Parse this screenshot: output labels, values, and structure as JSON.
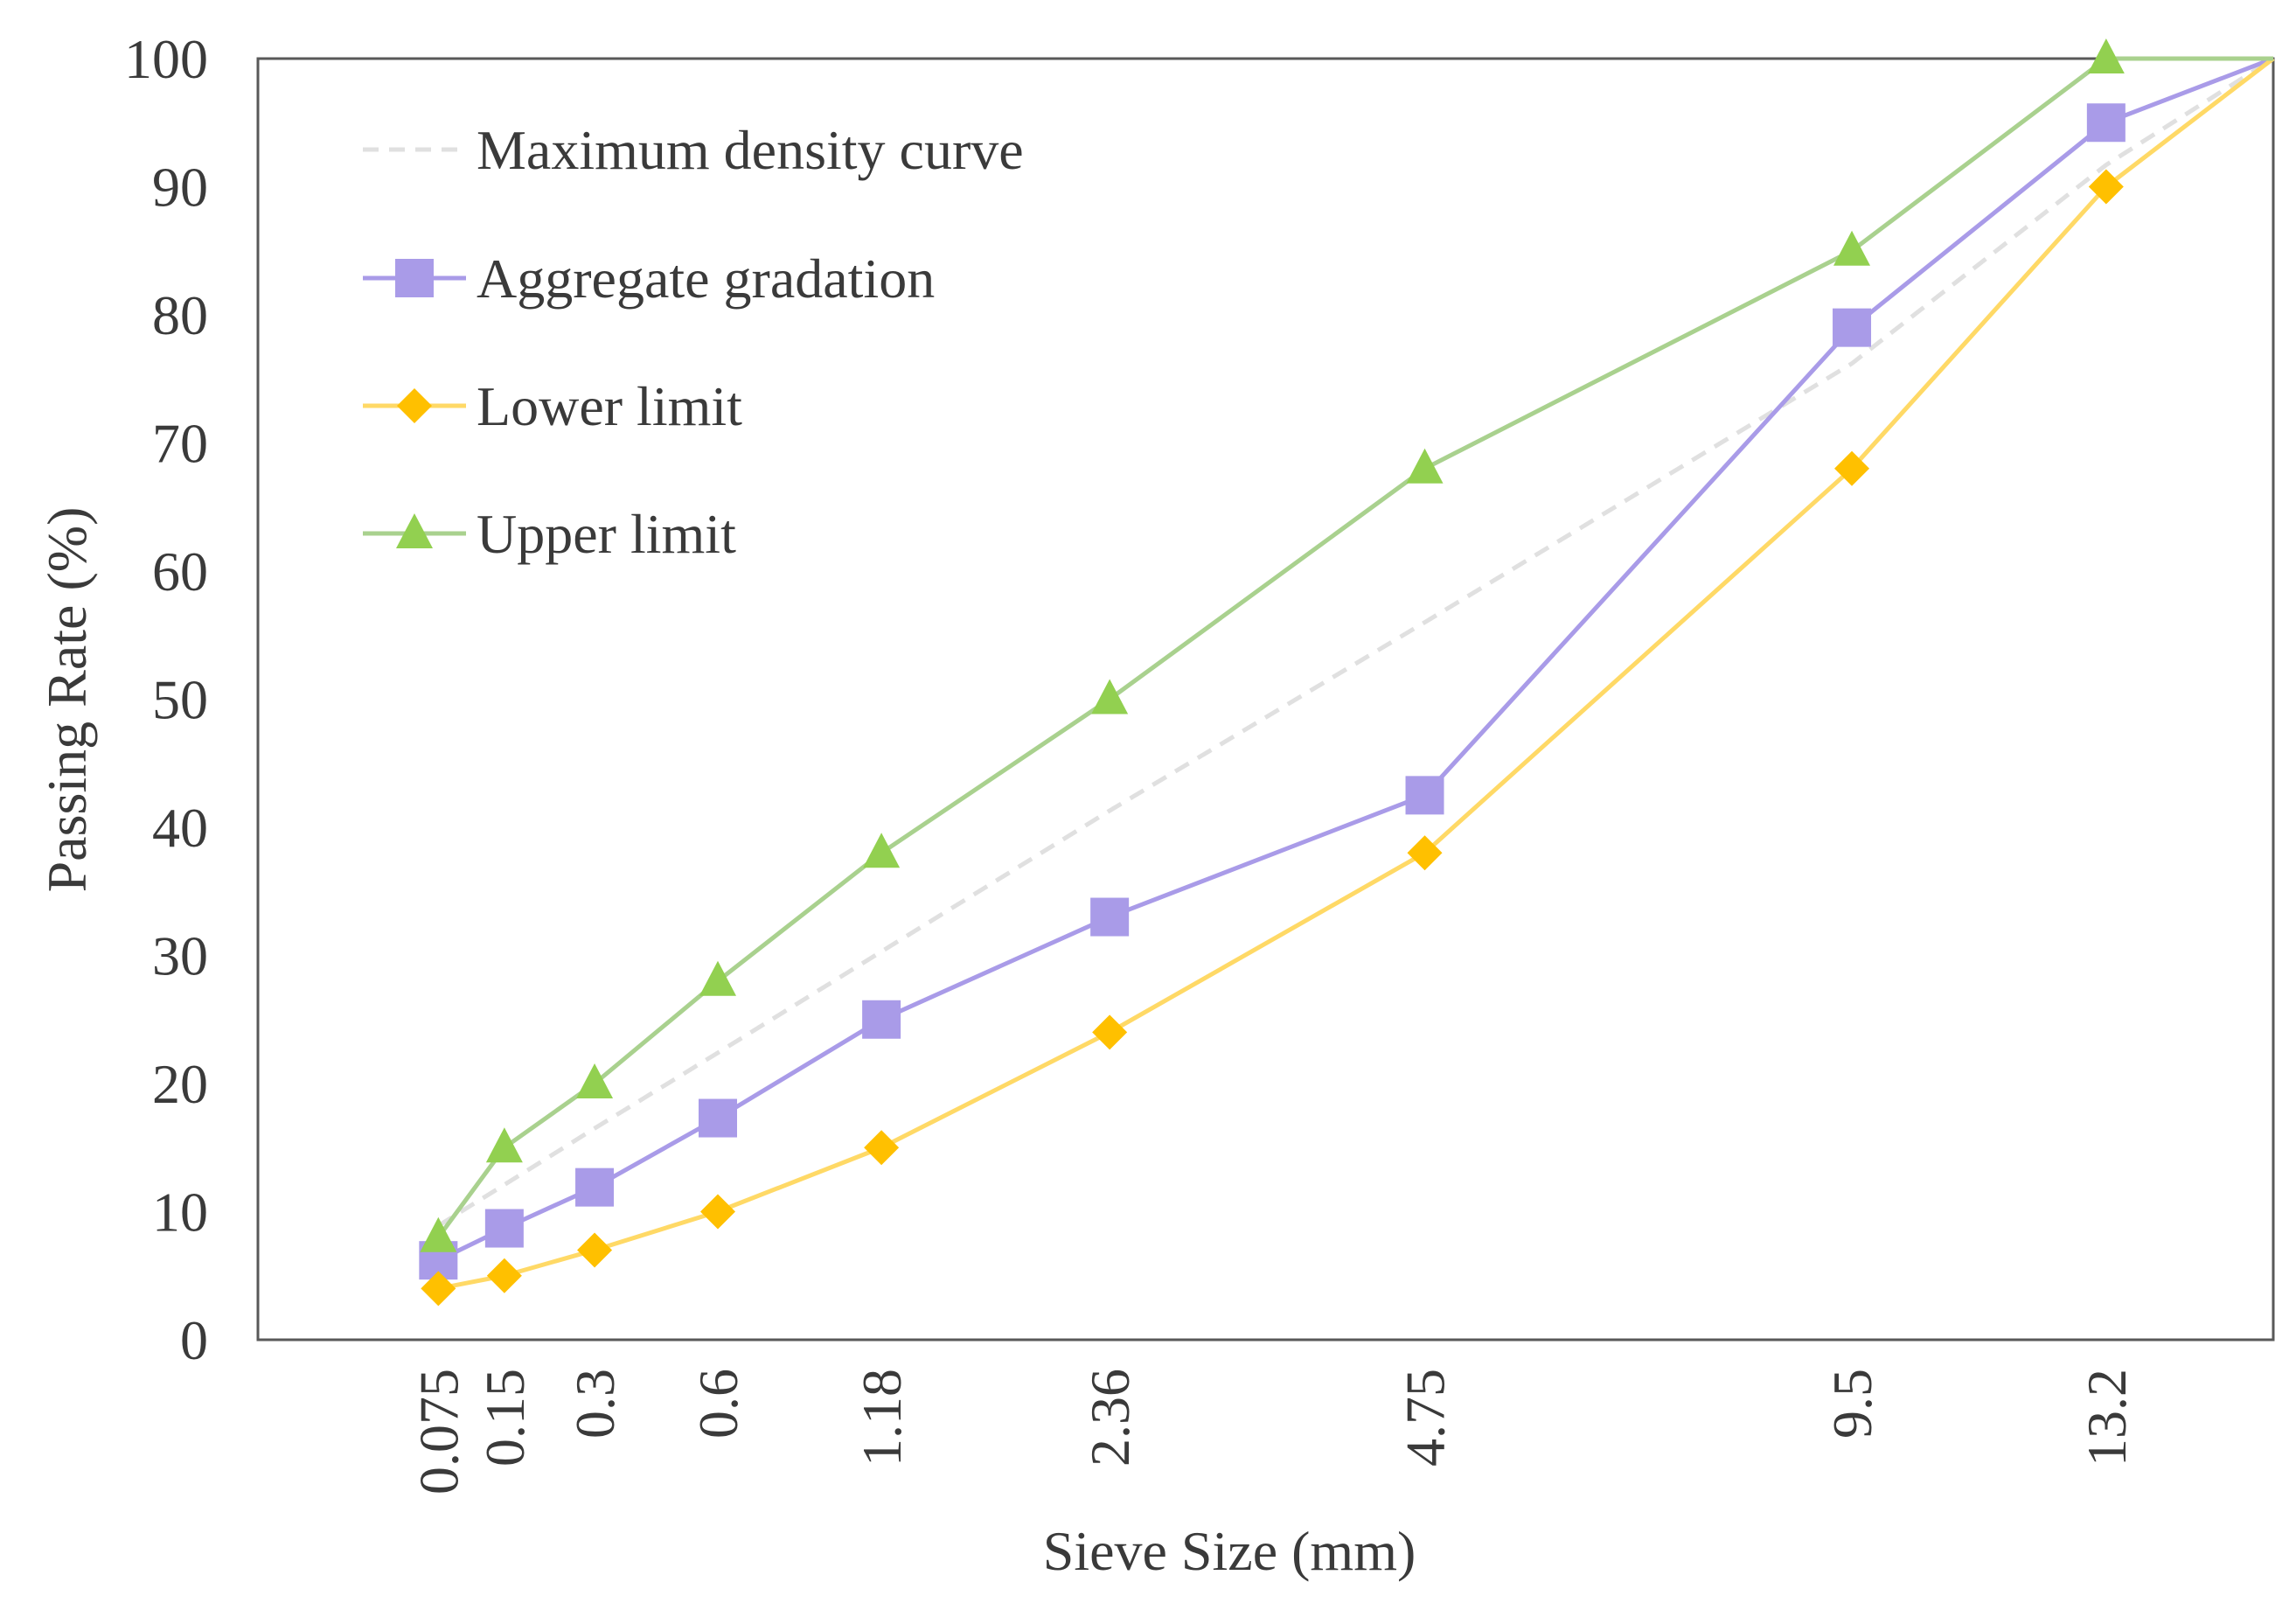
{
  "chart_data": {
    "type": "line",
    "xlabel": "Sieve Size (mm)",
    "ylabel": "Passing Rate (%)",
    "ylim": [
      0,
      100
    ],
    "yticks": [
      "0",
      "10",
      "20",
      "30",
      "40",
      "50",
      "60",
      "70",
      "80",
      "90",
      "100"
    ],
    "xticks": [
      "0.075",
      "0.15",
      "0.3",
      "0.6",
      "1.18",
      "2.36",
      "4.75",
      "9.5",
      "13.2"
    ],
    "x_scale": "power 0.45 of sieve size",
    "x_range": [
      0,
      16
    ],
    "legend_position": "top-left",
    "series": [
      {
        "name": "Maximum density curve",
        "color": "#e0e0e0",
        "style": "dashed",
        "marker": "none",
        "x": [
          0.075,
          0.15,
          0.3,
          0.6,
          1.18,
          2.36,
          4.75,
          9.5,
          13.2,
          16
        ],
        "y": [
          8.9,
          12.1,
          16.5,
          22.4,
          30.3,
          41.3,
          56.0,
          76.2,
          91.7,
          100
        ]
      },
      {
        "name": "Aggregate gradation",
        "color": "#a99be8",
        "style": "solid",
        "marker": "square",
        "x": [
          0.075,
          0.15,
          0.3,
          0.6,
          1.18,
          2.36,
          4.75,
          9.5,
          13.2,
          16
        ],
        "y": [
          6.2,
          8.7,
          11.9,
          17.3,
          25.0,
          33.0,
          42.5,
          79.0,
          95.0,
          100
        ]
      },
      {
        "name": "Lower limit",
        "color": "#ffc000",
        "line_color": "#ffd966",
        "style": "solid",
        "marker": "diamond",
        "x": [
          0.075,
          0.15,
          0.3,
          0.6,
          1.18,
          2.36,
          4.75,
          9.5,
          13.2,
          16
        ],
        "y": [
          4,
          5,
          7,
          10,
          15,
          24,
          38,
          68,
          90,
          100
        ]
      },
      {
        "name": "Upper limit",
        "color": "#92d050",
        "line_color": "#a9d18e",
        "style": "solid",
        "marker": "triangle",
        "x": [
          0.075,
          0.15,
          0.3,
          0.6,
          1.18,
          2.36,
          4.75,
          9.5,
          13.2,
          16
        ],
        "y": [
          8,
          15,
          20,
          28,
          38,
          50,
          68,
          85,
          100,
          100
        ]
      }
    ]
  }
}
